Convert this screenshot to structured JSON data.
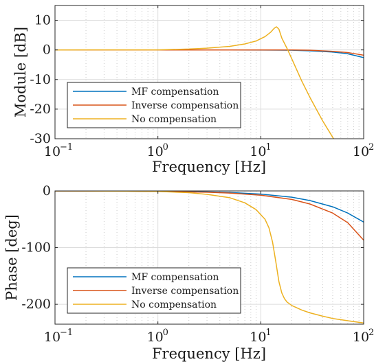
{
  "chart_data": [
    {
      "type": "line",
      "xlabel": "Frequency [Hz]",
      "ylabel": "Module [dB]",
      "xscale": "log",
      "xlim": [
        0.1,
        100
      ],
      "ylim": [
        -30,
        15
      ],
      "xticks": [
        {
          "base": "10",
          "exp": "−1"
        },
        {
          "base": "10",
          "exp": "0"
        },
        {
          "base": "10",
          "exp": "1"
        },
        {
          "base": "10",
          "exp": "2"
        }
      ],
      "yticks": [
        "10",
        "0",
        "-10",
        "-20",
        "-30"
      ],
      "ytick_values": [
        10,
        0,
        -10,
        -20,
        -30
      ],
      "grid": true,
      "legend_position": "bottom-left",
      "series": [
        {
          "name": "MF compensation",
          "color": "#0072BD",
          "x": [
            0.1,
            1,
            5,
            10,
            20,
            30,
            50,
            70,
            100
          ],
          "y": [
            0,
            0,
            0,
            -0.05,
            -0.1,
            -0.3,
            -0.7,
            -1.3,
            -2.6
          ]
        },
        {
          "name": "Inverse compensation",
          "color": "#D95319",
          "x": [
            0.1,
            1,
            5,
            10,
            20,
            30,
            50,
            70,
            100
          ],
          "y": [
            0,
            0,
            0,
            0,
            0,
            -0.1,
            -0.5,
            -0.9,
            -1.8
          ]
        },
        {
          "name": "No compensation",
          "color": "#EDB120",
          "x": [
            0.1,
            1,
            2,
            3,
            5,
            7,
            9,
            11,
            12.5,
            13.5,
            14.2,
            15,
            16,
            18,
            20,
            25,
            30,
            40,
            50,
            53
          ],
          "y": [
            0,
            0.02,
            0.3,
            0.6,
            1.2,
            2.0,
            3.0,
            4.5,
            6.0,
            7.3,
            7.8,
            7.0,
            4.0,
            0.5,
            -3.0,
            -10.5,
            -16,
            -24,
            -29.5,
            -31
          ]
        }
      ]
    },
    {
      "type": "line",
      "xlabel": "Frequency [Hz]",
      "ylabel": "Phase [deg]",
      "xscale": "log",
      "xlim": [
        0.1,
        100
      ],
      "ylim": [
        -235,
        0
      ],
      "xticks": [
        {
          "base": "10",
          "exp": "−1"
        },
        {
          "base": "10",
          "exp": "0"
        },
        {
          "base": "10",
          "exp": "1"
        },
        {
          "base": "10",
          "exp": "2"
        }
      ],
      "yticks": [
        "0",
        "-100",
        "-200"
      ],
      "ytick_values": [
        0,
        -100,
        -200
      ],
      "grid": true,
      "legend_position": "bottom-left",
      "series": [
        {
          "name": "MF compensation",
          "color": "#0072BD",
          "x": [
            0.1,
            0.5,
            1,
            3,
            5,
            10,
            20,
            30,
            50,
            70,
            100
          ],
          "y": [
            0,
            -0.3,
            -0.6,
            -1.7,
            -2.8,
            -5.6,
            -11,
            -17,
            -28,
            -39,
            -55
          ]
        },
        {
          "name": "Inverse compensation",
          "color": "#D95319",
          "x": [
            0.1,
            0.5,
            1,
            3,
            5,
            10,
            20,
            30,
            50,
            70,
            100
          ],
          "y": [
            0,
            -0.4,
            -0.8,
            -2.3,
            -3.8,
            -7.5,
            -15,
            -23,
            -39,
            -56,
            -87
          ]
        },
        {
          "name": "No compensation",
          "color": "#EDB120",
          "x": [
            0.1,
            0.5,
            1,
            2,
            3,
            5,
            7,
            9,
            11,
            12,
            13,
            14,
            15,
            16,
            17,
            18,
            20,
            25,
            30,
            40,
            50,
            70,
            100
          ],
          "y": [
            0,
            -0.5,
            -1,
            -3,
            -6,
            -12,
            -21,
            -33,
            -50,
            -65,
            -90,
            -125,
            -160,
            -180,
            -190,
            -196,
            -202,
            -210,
            -215,
            -221,
            -225,
            -229,
            -233
          ]
        }
      ]
    }
  ]
}
